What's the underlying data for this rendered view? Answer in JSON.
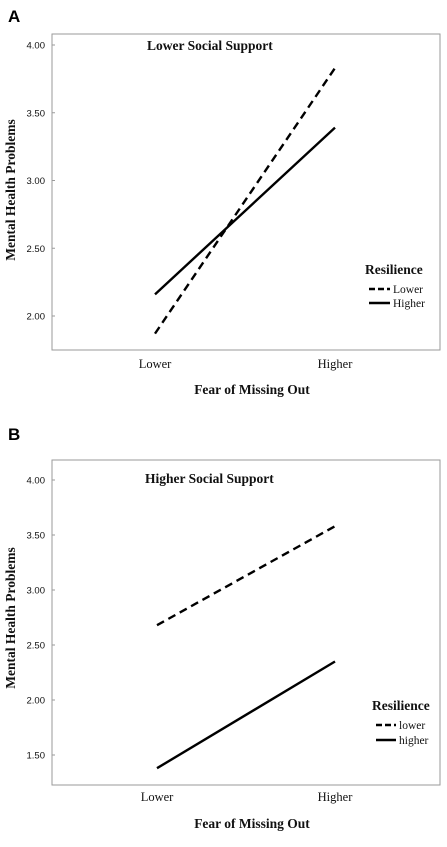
{
  "chart_data": [
    {
      "type": "line",
      "panel_label": "A",
      "title": "Lower Social Support",
      "xlabel": "Fear of Missing Out",
      "ylabel": "Mental Health Problems",
      "categories": [
        "Lower",
        "Higher"
      ],
      "ylim": [
        1.8,
        4.15
      ],
      "yticks": [
        "2.00",
        "2.50",
        "3.00",
        "3.50",
        "4.00"
      ],
      "ytick_values": [
        2.0,
        2.5,
        3.0,
        3.5,
        4.0
      ],
      "legend": {
        "title": "Resilience",
        "position": "right"
      },
      "series": [
        {
          "name": "Lower",
          "values": [
            1.87,
            3.83
          ],
          "style": "dashed"
        },
        {
          "name": "Higher",
          "values": [
            2.16,
            3.39
          ],
          "style": "solid"
        }
      ]
    },
    {
      "type": "line",
      "panel_label": "B",
      "title": "Higher Social Support",
      "xlabel": "Fear of Missing Out",
      "ylabel": "Mental Health Problems",
      "categories": [
        "Lower",
        "Higher"
      ],
      "ylim": [
        1.3,
        4.1
      ],
      "yticks": [
        "1.50",
        "2.00",
        "2.50",
        "3.00",
        "3.50",
        "4.00"
      ],
      "ytick_values": [
        1.5,
        2.0,
        2.5,
        3.0,
        3.5,
        4.0
      ],
      "legend": {
        "title": "Resilience",
        "position": "right"
      },
      "series": [
        {
          "name": "lower",
          "values": [
            2.68,
            3.58
          ],
          "style": "dashed"
        },
        {
          "name": "higher",
          "values": [
            1.38,
            2.35
          ],
          "style": "solid"
        }
      ]
    }
  ]
}
